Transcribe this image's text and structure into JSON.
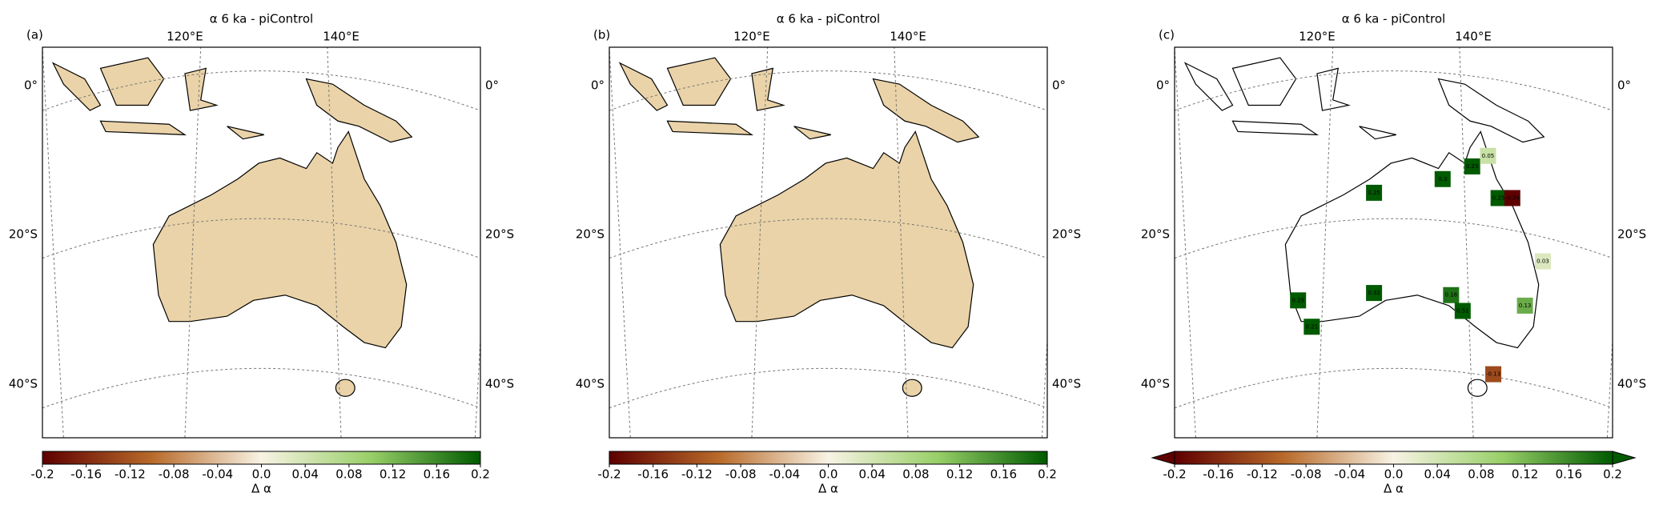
{
  "panels": [
    {
      "label": "(a)",
      "title": "α 6 ka - piControl",
      "lon_labels": [
        "120°E",
        "140°E"
      ],
      "lat_labels": [
        "0°",
        "20°S",
        "40°S"
      ],
      "colorbar": {
        "label": "Δ α",
        "lim": [
          -0.2,
          0.2
        ],
        "extend": "neither",
        "ticks": [
          -0.2,
          -0.16,
          -0.12,
          -0.08,
          -0.04,
          {
            "value": 0,
            "label": "0.0"
          },
          0.04,
          0.08,
          0.12,
          0.16,
          0.2
        ]
      }
    },
    {
      "label": "(b)",
      "title": "α 6 ka - piControl",
      "lon_labels": [
        "120°E",
        "140°E"
      ],
      "lat_labels": [
        "0°",
        "20°S",
        "40°S"
      ],
      "colorbar": {
        "label": "Δ α",
        "lim": [
          -0.2,
          0.2
        ],
        "extend": "neither",
        "ticks": [
          -0.2,
          -0.16,
          -0.12,
          -0.08,
          -0.04,
          {
            "value": 0,
            "label": "0.0"
          },
          0.04,
          0.08,
          0.12,
          0.16,
          0.2
        ]
      }
    },
    {
      "label": "(c)",
      "title": "α 6 ka - piControl",
      "lon_labels": [
        "120°E",
        "140°E"
      ],
      "lat_labels": [
        "0°",
        "20°S",
        "40°S"
      ],
      "colorbar": {
        "label": "Δ α",
        "lim": [
          -0.2,
          0.2
        ],
        "extend": "both",
        "ticks": [
          -0.2,
          -0.16,
          -0.12,
          -0.08,
          -0.04,
          {
            "value": 0,
            "label": "0.0"
          },
          0.04,
          0.08,
          0.12,
          0.16,
          0.2
        ]
      },
      "site_values": [
        0.25,
        0.3,
        0.25,
        0.05,
        0.25,
        -0.24,
        0.32,
        0.18,
        0.51,
        0.13,
        0.29,
        0.21,
        0.03,
        -0.13
      ]
    }
  ]
}
